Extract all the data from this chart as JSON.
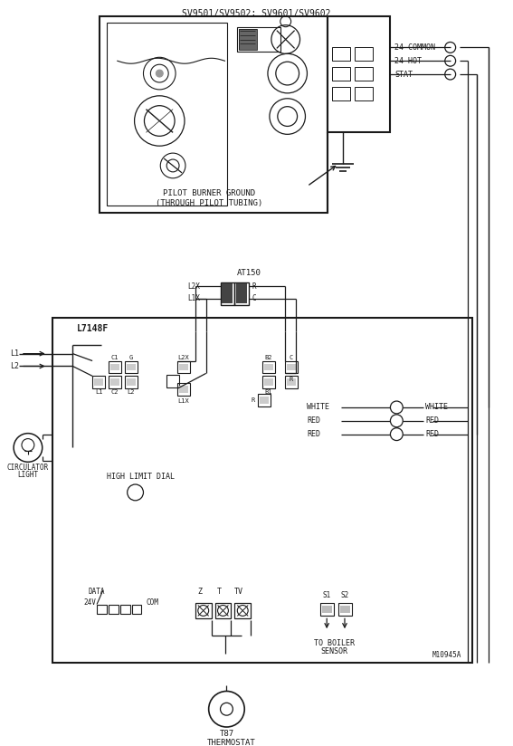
{
  "bg_color": "#ffffff",
  "line_color": "#1a1a1a",
  "fig_width": 5.67,
  "fig_height": 8.24,
  "dpi": 100,
  "labels": {
    "sv_title": "SV9501/SV9502; SV9601/SV9602",
    "common": "24 COMMON",
    "hot": "24 HOT",
    "stat": "STAT",
    "pilot_ground_1": "PILOT BURNER GROUND",
    "pilot_ground_2": "(THROUGH PILOT TUBING)",
    "at150": "AT150",
    "l7148f": "L7148F",
    "l1": "L1",
    "l2": "L2",
    "c1": "C1",
    "g": "G",
    "l1_t": "L1",
    "c2": "C2",
    "l2_t": "L2",
    "l2x_top": "L2X",
    "l1x_top": "L1X",
    "r_top": "R",
    "c_top": "C",
    "l2x_bot": "L2X",
    "l1x_bot": "L1X",
    "b2": "B2",
    "c_r": "C",
    "b1": "B1",
    "r_r": "R",
    "white_l": "WHITE",
    "red1_l": "RED",
    "red2_l": "RED",
    "white_r": "WHITE",
    "red1_r": "RED",
    "red2_r": "RED",
    "circulator": "CIRCULATOR",
    "light": "LIGHT",
    "high_limit": "HIGH LIMIT DIAL",
    "data": "DATA",
    "v24": "24V",
    "com": "COM",
    "z": "Z",
    "t": "T",
    "tv": "TV",
    "s1": "S1",
    "s2": "S2",
    "boiler_1": "TO BOILER",
    "boiler_2": "SENSOR",
    "t87": "T87",
    "thermostat": "THERMOSTAT",
    "m10945a": "M10945A"
  }
}
